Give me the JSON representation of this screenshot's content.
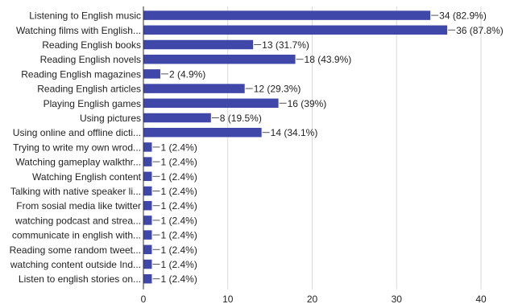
{
  "chart_data": {
    "type": "bar",
    "orientation": "horizontal",
    "categories": [
      "Listening to English music",
      "Watching films with English...",
      "Reading English books",
      "Reading English novels",
      "Reading English magazines",
      "Reading English articles",
      "Playing English games",
      "Using pictures",
      "Using online and offline dicti...",
      "Trying to write my own wrod...",
      "Watching gameplay walkthr...",
      "Watching English content",
      "Talking with native speaker li...",
      "From sosial media like twitter",
      "watching podcast and strea...",
      "communicate in english with...",
      "Reading some random tweet...",
      "watching content outside Ind...",
      "Listen to english stories on..."
    ],
    "values": [
      34,
      36,
      13,
      18,
      2,
      12,
      16,
      8,
      14,
      1,
      1,
      1,
      1,
      1,
      1,
      1,
      1,
      1,
      1
    ],
    "value_labels": [
      "34 (82.9%)",
      "36 (87.8%)",
      "13 (31.7%)",
      "18 (43.9%)",
      "2 (4.9%)",
      "12 (29.3%)",
      "16 (39%)",
      "8 (19.5%)",
      "14 (34.1%)",
      "1 (2.4%)",
      "1 (2.4%)",
      "1 (2.4%)",
      "1 (2.4%)",
      "1 (2.4%)",
      "1 (2.4%)",
      "1 (2.4%)",
      "1 (2.4%)",
      "1 (2.4%)",
      "1 (2.4%)"
    ],
    "xlim": [
      0,
      40
    ],
    "x_ticks": [
      0,
      10,
      20,
      30,
      40
    ],
    "grid": true,
    "bar_color": "#3f48a8",
    "grid_color": "#d9d9d9"
  }
}
